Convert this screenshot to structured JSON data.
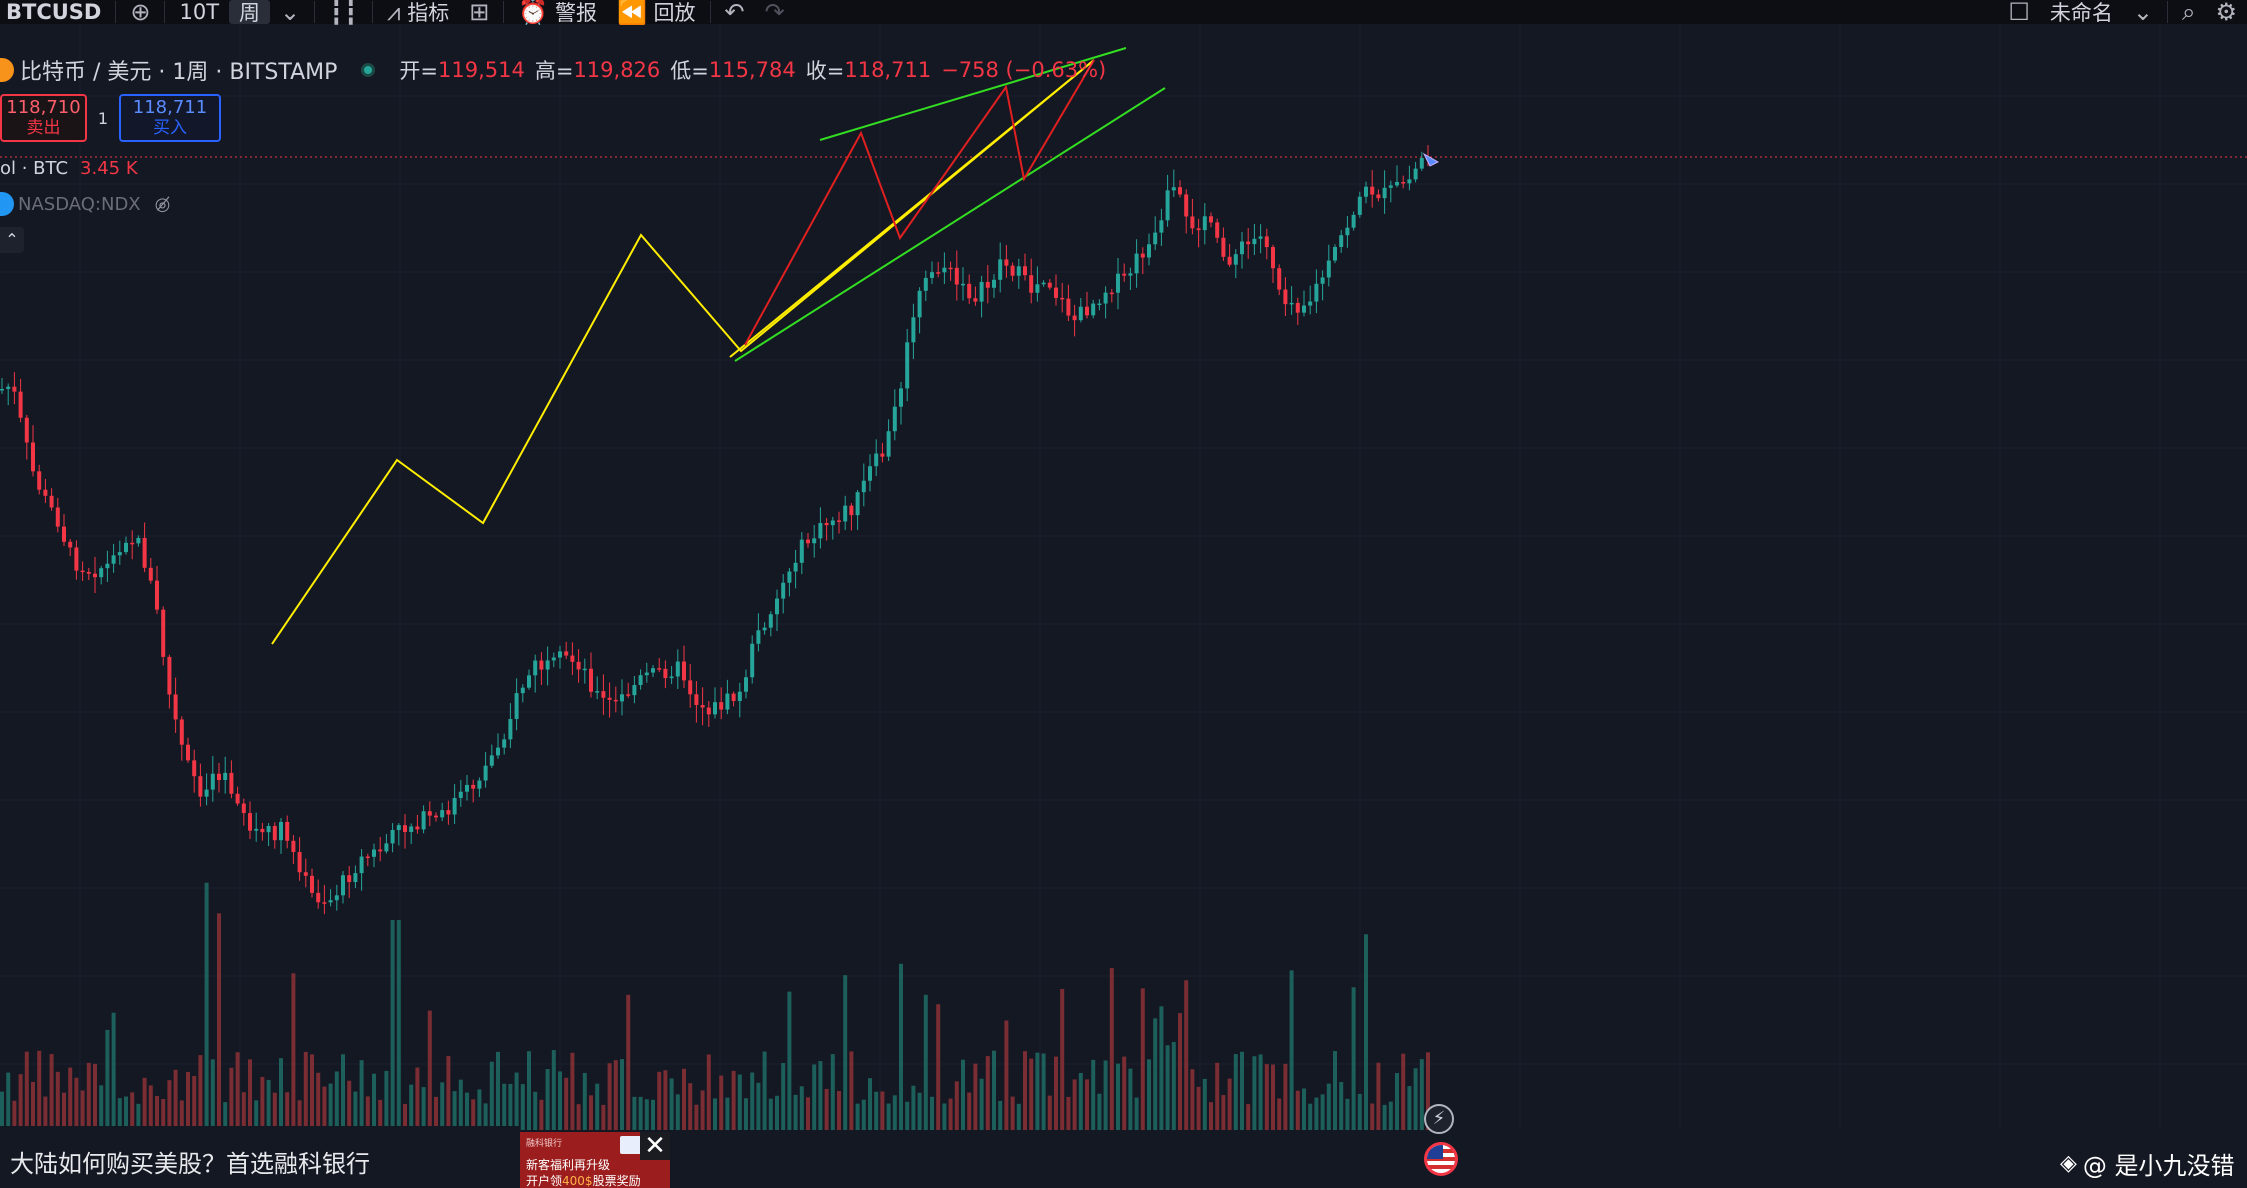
{
  "toolbar": {
    "symbol": "BTCUSD",
    "add_icon": "plus-circle-icon",
    "interval": "10T",
    "period": "周",
    "chevron": "chevron-down-icon",
    "candle_icon": "candlestick-icon",
    "indicators": "指标",
    "layouts_icon": "grid-icon",
    "alert": "警报",
    "replay": "回放",
    "undo_icon": "undo-icon",
    "redo_icon": "redo-icon",
    "layout_name": "未命名",
    "search_icon": "search-icon",
    "settings_icon": "gear-icon"
  },
  "legend": {
    "title": "比特币 / 美元 · 1周 · BITSTAMP",
    "open_label": "开=",
    "open": "119,514",
    "high_label": "高=",
    "high": "119,826",
    "low_label": "低=",
    "low": "115,784",
    "close_label": "收=",
    "close": "118,711",
    "change": "−758 (−0.63%)"
  },
  "trade": {
    "sell_price": "118,710",
    "sell_label": "卖出",
    "spread": "1",
    "buy_price": "118,711",
    "buy_label": "买入"
  },
  "indicators": {
    "volume_name": "ol · BTC",
    "volume_value": "3.45 K",
    "compare_symbol": "NASDAQ:NDX",
    "eye_icon": "eye-off-icon",
    "collapse_icon": "chevron-up-icon"
  },
  "ad": {
    "text": "大陆如何购买美股？首选融科银行",
    "banner_line1": "融科银行",
    "banner_line2": "新客福利再升级",
    "banner_line3a": "开户领",
    "banner_line3b": "400$",
    "banner_line3c": "股票奖励",
    "close_icon": "close-icon"
  },
  "widgets": {
    "bolt_icon": "lightning-icon",
    "flag_icon": "us-flag-icon"
  },
  "watermark": {
    "icon": "binance-diamond-icon",
    "text": "@ 是小九没错"
  },
  "colors": {
    "background": "#141823",
    "up": "#26a69a",
    "down": "#f23645",
    "vol_up": "#1d5f5a",
    "vol_down": "#7a2d33",
    "yellow": "#ffee00",
    "green": "#33dd22",
    "red": "#e02020",
    "price_line": "#f23645"
  },
  "chart_data": {
    "type": "candlestick",
    "series_trend": "weekly price, estimated from screenshot (relative levels)",
    "drawings": {
      "yellow_zigzag": [
        [
          272,
          644
        ],
        [
          397,
          460
        ],
        [
          483,
          523
        ],
        [
          641,
          235
        ],
        [
          741,
          351
        ],
        [
          1094,
          60
        ]
      ],
      "yellow_base": [
        [
          730,
          357
        ],
        [
          1094,
          60
        ]
      ],
      "green_upper": [
        [
          820,
          140
        ],
        [
          1126,
          48
        ]
      ],
      "green_lower": [
        [
          735,
          361
        ],
        [
          1165,
          88
        ]
      ],
      "red_zigzag": [
        [
          745,
          345
        ],
        [
          861,
          133
        ],
        [
          900,
          238
        ],
        [
          1006,
          87
        ],
        [
          1024,
          179
        ],
        [
          1094,
          60
        ]
      ]
    }
  }
}
